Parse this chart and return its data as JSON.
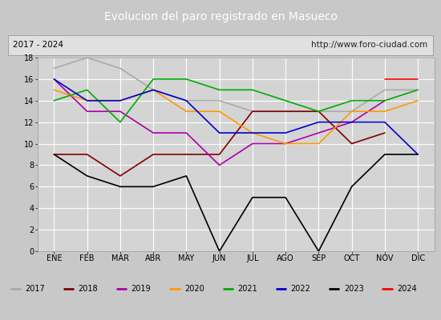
{
  "title": "Evolucion del paro registrado en Masueco",
  "subtitle_left": "2017 - 2024",
  "subtitle_right": "http://www.foro-ciudad.com",
  "title_bg_color": "#3a6fd8",
  "title_text_color": "#ffffff",
  "subtitle_bg_color": "#e0e0e0",
  "plot_bg_color": "#d4d4d4",
  "outer_bg_color": "#c8c8c8",
  "months": [
    "ENE",
    "FEB",
    "MAR",
    "ABR",
    "MAY",
    "JUN",
    "JUL",
    "AGO",
    "SEP",
    "OCT",
    "NOV",
    "DIC"
  ],
  "series": {
    "2017": {
      "color": "#aaaaaa",
      "data": [
        17,
        18,
        17,
        15,
        14,
        14,
        13,
        13,
        13,
        13,
        15,
        15
      ]
    },
    "2018": {
      "color": "#800000",
      "data": [
        9,
        9,
        7,
        9,
        9,
        9,
        13,
        13,
        13,
        10,
        11,
        null
      ]
    },
    "2019": {
      "color": "#aa00aa",
      "data": [
        16,
        13,
        13,
        11,
        11,
        8,
        10,
        10,
        11,
        12,
        14,
        null
      ]
    },
    "2020": {
      "color": "#ff9900",
      "data": [
        15,
        14,
        14,
        15,
        13,
        13,
        11,
        10,
        10,
        13,
        13,
        14
      ]
    },
    "2021": {
      "color": "#00aa00",
      "data": [
        14,
        15,
        12,
        16,
        16,
        15,
        15,
        14,
        13,
        14,
        14,
        15
      ]
    },
    "2022": {
      "color": "#0000cc",
      "data": [
        16,
        14,
        14,
        15,
        14,
        11,
        11,
        11,
        12,
        12,
        12,
        9
      ]
    },
    "2023": {
      "color": "#000000",
      "data": [
        9,
        7,
        6,
        6,
        7,
        0,
        5,
        5,
        0,
        6,
        9,
        9
      ]
    },
    "2024": {
      "color": "#ff0000",
      "data": [
        null,
        null,
        null,
        null,
        null,
        null,
        null,
        null,
        null,
        null,
        16,
        16
      ]
    }
  },
  "ylim": [
    0,
    18
  ],
  "yticks": [
    0,
    2,
    4,
    6,
    8,
    10,
    12,
    14,
    16,
    18
  ],
  "legend_order": [
    "2017",
    "2018",
    "2019",
    "2020",
    "2021",
    "2022",
    "2023",
    "2024"
  ],
  "title_fontsize": 10,
  "subtitle_fontsize": 7.5,
  "tick_fontsize": 7,
  "legend_fontsize": 7
}
